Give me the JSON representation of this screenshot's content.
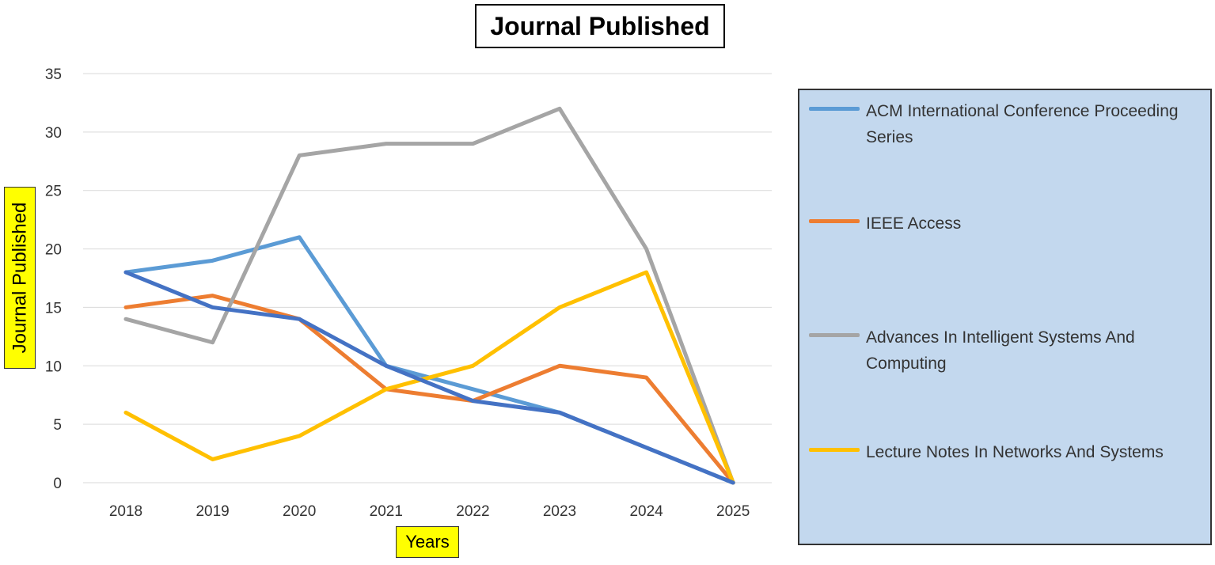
{
  "chart_data": {
    "type": "line",
    "title": "Journal Published",
    "xlabel": "Years",
    "ylabel": "Journal Published",
    "categories": [
      "2018",
      "2019",
      "2020",
      "2021",
      "2022",
      "2023",
      "2024",
      "2025"
    ],
    "ylim": [
      0,
      35
    ],
    "yticks": [
      "0",
      "5",
      "10",
      "15",
      "20",
      "25",
      "30",
      "35"
    ],
    "grid": true,
    "legend_position": "right",
    "series": [
      {
        "name": "ACM International Conference Proceeding Series",
        "color": "#5b9bd5",
        "values": [
          18,
          19,
          21,
          10,
          8,
          6,
          3,
          0
        ]
      },
      {
        "name": "IEEE Access",
        "color": "#ed7d31",
        "values": [
          15,
          16,
          14,
          8,
          7,
          10,
          9,
          0
        ]
      },
      {
        "name": "Advances In Intelligent Systems And Computing",
        "color": "#a5a5a5",
        "values": [
          14,
          12,
          28,
          29,
          29,
          32,
          20,
          0
        ]
      },
      {
        "name": "Lecture Notes In Networks And Systems",
        "color": "#ffc000",
        "values": [
          6,
          2,
          4,
          8,
          10,
          15,
          18,
          0
        ]
      },
      {
        "name": "",
        "color": "#4472c4",
        "values": [
          18,
          15,
          14,
          10,
          7,
          6,
          3,
          0
        ]
      }
    ]
  }
}
